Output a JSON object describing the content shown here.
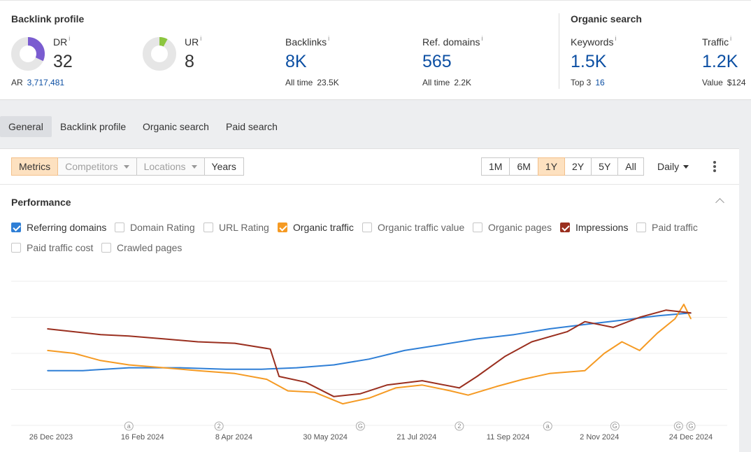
{
  "backlink_profile": {
    "title": "Backlink profile",
    "dr": {
      "label": "DR",
      "info": "i",
      "value": "32",
      "fraction": 0.32,
      "color": "#7a5cd0"
    },
    "ar": {
      "label": "AR",
      "value": "3,717,481"
    },
    "ur": {
      "label": "UR",
      "info": "i",
      "value": "8",
      "fraction": 0.08,
      "color": "#8cc63f"
    },
    "backlinks": {
      "label": "Backlinks",
      "info": "i",
      "value": "8K",
      "sub_label": "All time",
      "sub_value": "23.5K"
    },
    "ref_domains": {
      "label": "Ref. domains",
      "info": "i",
      "value": "565",
      "sub_label": "All time",
      "sub_value": "2.2K"
    }
  },
  "organic_search": {
    "title": "Organic search",
    "keywords": {
      "label": "Keywords",
      "info": "i",
      "value": "1.5K",
      "sub_label": "Top 3",
      "sub_value": "16"
    },
    "traffic": {
      "label": "Traffic",
      "info": "i",
      "value": "1.2K",
      "sub_label": "Value",
      "sub_value": "$124"
    }
  },
  "tabs": [
    {
      "label": "General",
      "active": true
    },
    {
      "label": "Backlink profile",
      "active": false
    },
    {
      "label": "Organic search",
      "active": false
    },
    {
      "label": "Paid search",
      "active": false
    }
  ],
  "toolbar": {
    "views": [
      {
        "label": "Metrics",
        "state": "on"
      },
      {
        "label": "Competitors",
        "state": "disabled"
      },
      {
        "label": "Locations",
        "state": "disabled"
      },
      {
        "label": "Years",
        "state": "normal"
      }
    ],
    "ranges": [
      {
        "label": "1M",
        "selected": false
      },
      {
        "label": "6M",
        "selected": false
      },
      {
        "label": "1Y",
        "selected": true
      },
      {
        "label": "2Y",
        "selected": false
      },
      {
        "label": "5Y",
        "selected": false
      },
      {
        "label": "All",
        "selected": false
      }
    ],
    "interval": "Daily"
  },
  "performance": {
    "title": "Performance",
    "metrics": [
      {
        "label": "Referring domains",
        "checked": true,
        "color": "#2f7fd6"
      },
      {
        "label": "Domain Rating",
        "checked": false
      },
      {
        "label": "URL Rating",
        "checked": false
      },
      {
        "label": "Organic traffic",
        "checked": true,
        "color": "#f59a23"
      },
      {
        "label": "Organic traffic value",
        "checked": false
      },
      {
        "label": "Organic pages",
        "checked": false
      },
      {
        "label": "Impressions",
        "checked": true,
        "color": "#9a2f1f"
      },
      {
        "label": "Paid traffic",
        "checked": false
      },
      {
        "label": "Paid traffic cost",
        "checked": false
      },
      {
        "label": "Crawled pages",
        "checked": false
      }
    ]
  },
  "chart_data": {
    "type": "line",
    "x_tick_labels": [
      "26 Dec 2023",
      "16 Feb 2024",
      "8 Apr 2024",
      "30 May 2024",
      "21 Jul 2024",
      "11 Sep 2024",
      "2 Nov 2024",
      "24 Dec 2024"
    ],
    "annotations": [
      {
        "date": "2024-02-10",
        "symbol": "a"
      },
      {
        "date": "2024-04-01",
        "symbol": "2"
      },
      {
        "date": "2024-06-20",
        "symbol": "G"
      },
      {
        "date": "2024-08-15",
        "symbol": "2"
      },
      {
        "date": "2024-10-04",
        "symbol": "a"
      },
      {
        "date": "2024-11-11",
        "symbol": "G"
      },
      {
        "date": "2024-12-17",
        "symbol": "G"
      },
      {
        "date": "2024-12-24",
        "symbol": "G"
      }
    ],
    "y_scale": "relative, per-series (no y-axis labels shown)",
    "grid": true,
    "series": [
      {
        "name": "Referring domains",
        "color": "#2f7fd6",
        "points": [
          [
            "2023-12-26",
            0.38
          ],
          [
            "2024-01-15",
            0.38
          ],
          [
            "2024-02-10",
            0.4
          ],
          [
            "2024-03-10",
            0.4
          ],
          [
            "2024-04-05",
            0.39
          ],
          [
            "2024-04-25",
            0.39
          ],
          [
            "2024-05-15",
            0.4
          ],
          [
            "2024-06-05",
            0.42
          ],
          [
            "2024-06-25",
            0.46
          ],
          [
            "2024-07-15",
            0.52
          ],
          [
            "2024-08-05",
            0.56
          ],
          [
            "2024-08-25",
            0.6
          ],
          [
            "2024-09-15",
            0.63
          ],
          [
            "2024-10-05",
            0.67
          ],
          [
            "2024-10-25",
            0.7
          ],
          [
            "2024-11-15",
            0.73
          ],
          [
            "2024-12-05",
            0.76
          ],
          [
            "2024-12-24",
            0.78
          ]
        ]
      },
      {
        "name": "Organic traffic",
        "color": "#f59a23",
        "points": [
          [
            "2023-12-26",
            0.52
          ],
          [
            "2024-01-10",
            0.5
          ],
          [
            "2024-01-25",
            0.45
          ],
          [
            "2024-02-10",
            0.42
          ],
          [
            "2024-03-01",
            0.4
          ],
          [
            "2024-03-20",
            0.38
          ],
          [
            "2024-04-10",
            0.36
          ],
          [
            "2024-04-28",
            0.32
          ],
          [
            "2024-05-10",
            0.24
          ],
          [
            "2024-05-25",
            0.23
          ],
          [
            "2024-06-10",
            0.15
          ],
          [
            "2024-06-25",
            0.19
          ],
          [
            "2024-07-10",
            0.26
          ],
          [
            "2024-07-25",
            0.28
          ],
          [
            "2024-08-10",
            0.24
          ],
          [
            "2024-08-20",
            0.21
          ],
          [
            "2024-09-05",
            0.27
          ],
          [
            "2024-09-20",
            0.32
          ],
          [
            "2024-10-05",
            0.36
          ],
          [
            "2024-10-25",
            0.38
          ],
          [
            "2024-11-05",
            0.5
          ],
          [
            "2024-11-15",
            0.58
          ],
          [
            "2024-11-25",
            0.52
          ],
          [
            "2024-12-05",
            0.64
          ],
          [
            "2024-12-15",
            0.74
          ],
          [
            "2024-12-20",
            0.84
          ],
          [
            "2024-12-24",
            0.74
          ]
        ]
      },
      {
        "name": "Impressions",
        "color": "#9a2f1f",
        "points": [
          [
            "2023-12-26",
            0.67
          ],
          [
            "2024-01-10",
            0.65
          ],
          [
            "2024-01-25",
            0.63
          ],
          [
            "2024-02-10",
            0.62
          ],
          [
            "2024-03-01",
            0.6
          ],
          [
            "2024-03-20",
            0.58
          ],
          [
            "2024-04-10",
            0.57
          ],
          [
            "2024-04-30",
            0.53
          ],
          [
            "2024-05-05",
            0.34
          ],
          [
            "2024-05-20",
            0.3
          ],
          [
            "2024-06-05",
            0.2
          ],
          [
            "2024-06-20",
            0.22
          ],
          [
            "2024-07-05",
            0.28
          ],
          [
            "2024-07-25",
            0.31
          ],
          [
            "2024-08-15",
            0.26
          ],
          [
            "2024-08-25",
            0.34
          ],
          [
            "2024-09-10",
            0.48
          ],
          [
            "2024-09-25",
            0.58
          ],
          [
            "2024-10-15",
            0.65
          ],
          [
            "2024-10-25",
            0.72
          ],
          [
            "2024-11-10",
            0.68
          ],
          [
            "2024-11-25",
            0.75
          ],
          [
            "2024-12-10",
            0.8
          ],
          [
            "2024-12-24",
            0.78
          ]
        ]
      }
    ]
  }
}
